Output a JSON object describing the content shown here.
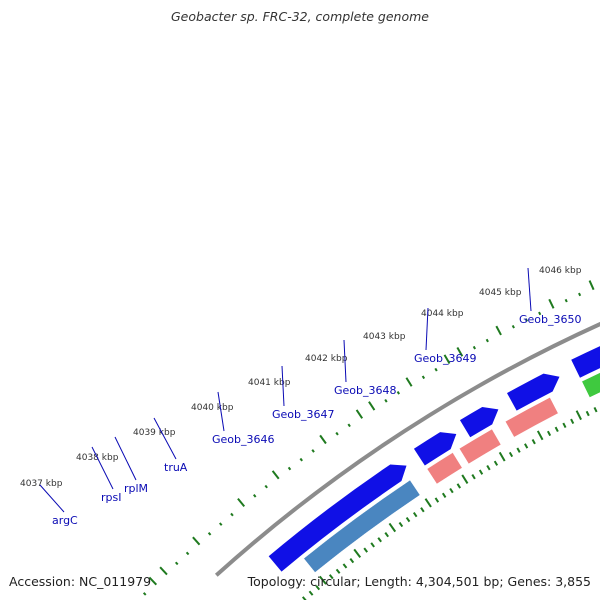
{
  "title": "Geobacter sp. FRC-32, complete genome",
  "footer": {
    "accession": "Accession: NC_011979",
    "summary": "Topology: circular; Length: 4,304,501 bp; Genes: 3,855"
  },
  "colors": {
    "backbone": "#8c8c8c",
    "cds_outer": "#1010e6",
    "tick_green": "#1f7a1f",
    "gene_label": "#0a0ab4",
    "kbp_text": "#333333"
  },
  "kbp_ticks": [
    "4037 kbp",
    "4038 kbp",
    "4039 kbp",
    "4040 kbp",
    "4041 kbp",
    "4042 kbp",
    "4043 kbp",
    "4044 kbp",
    "4045 kbp",
    "4046 kbp"
  ],
  "genes": [
    {
      "label": "argC",
      "color": "#4a86c0"
    },
    {
      "label": "rpsI",
      "color": "#f08080"
    },
    {
      "label": "rplM",
      "color": "#f08080"
    },
    {
      "label": "truA",
      "color": "#f08080"
    },
    {
      "label": "Geob_3646",
      "color": "#3fc93f"
    },
    {
      "label": "Geob_3647",
      "color": "#ff8c00"
    },
    {
      "label": "Geob_3648",
      "color": "#6b8e23"
    },
    {
      "label": "Geob_3649",
      "color": "#00e8ef"
    },
    {
      "label": "Geob_3650",
      "color": "#c8c8c8"
    }
  ]
}
